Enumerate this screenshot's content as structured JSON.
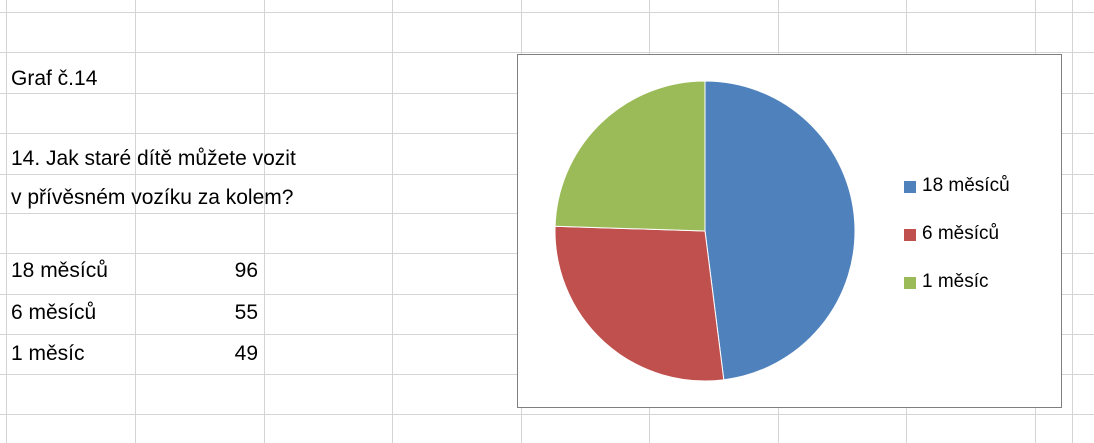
{
  "sheet": {
    "title": "Graf č.14",
    "question_line1": "14. Jak staré dítě můžete vozit",
    "question_line2": "v přívěsném vozíku za kolem?",
    "rows": [
      {
        "label": "18 měsíců",
        "value": "96"
      },
      {
        "label": "6 měsíců",
        "value": "55"
      },
      {
        "label": "1 měsíc",
        "value": "49"
      }
    ]
  },
  "chart_data": {
    "type": "pie",
    "categories": [
      "18 měsíců",
      "6 měsíců",
      "1 měsíc"
    ],
    "values": [
      96,
      55,
      49
    ],
    "colors": [
      "#4f81bd",
      "#c0504d",
      "#9bbb59"
    ],
    "legend": "right"
  }
}
